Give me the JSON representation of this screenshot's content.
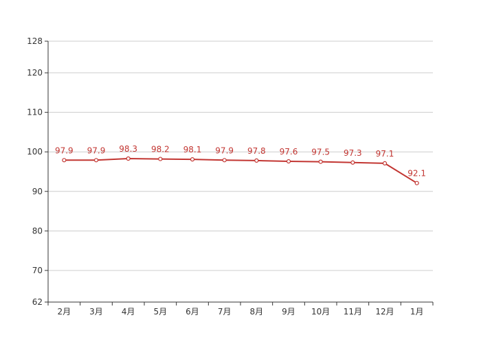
{
  "chart_data": {
    "type": "line",
    "categories": [
      "2月",
      "3月",
      "4月",
      "5月",
      "6月",
      "7月",
      "8月",
      "9月",
      "10月",
      "11月",
      "12月",
      "1月"
    ],
    "series": [
      {
        "values": [
          97.9,
          97.9,
          98.3,
          98.2,
          98.1,
          97.9,
          97.8,
          97.6,
          97.5,
          97.3,
          97.1,
          92.1
        ],
        "color": "#c23531"
      }
    ],
    "ylim": [
      62,
      128
    ],
    "yticks": [
      62,
      70,
      80,
      90,
      100,
      110,
      120,
      128
    ],
    "grid": true,
    "data_labels": true,
    "title": "",
    "xlabel": "",
    "ylabel": ""
  }
}
